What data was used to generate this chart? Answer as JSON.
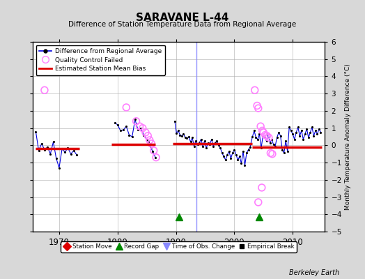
{
  "title": "SARAVANE L-44",
  "subtitle": "Difference of Station Temperature Data from Regional Average",
  "ylabel_right": "Monthly Temperature Anomaly Difference (°C)",
  "ylim": [
    -5,
    6
  ],
  "xlim": [
    1965.5,
    2015.5
  ],
  "xticks": [
    1970,
    1980,
    1990,
    2000,
    2010
  ],
  "background_color": "#d8d8d8",
  "plot_bg_color": "#ffffff",
  "grid_color": "#aaaaaa",
  "watermark": "Berkeley Earth",
  "bias_segments": [
    {
      "x_start": 1966.0,
      "x_end": 1973.5,
      "bias": -0.2
    },
    {
      "x_start": 1979.0,
      "x_end": 1986.5,
      "bias": 0.05
    },
    {
      "x_start": 1989.5,
      "x_end": 2003.0,
      "bias": 0.08
    },
    {
      "x_start": 2003.0,
      "x_end": 2015.0,
      "bias": -0.1
    }
  ],
  "time_of_obs_changes": [
    1993.5
  ],
  "record_gaps": [
    1990.5,
    2004.2
  ],
  "empirical_breaks": [],
  "station_moves": [],
  "qc_failed_points": [
    [
      1967.5,
      3.2
    ],
    [
      1981.5,
      2.2
    ],
    [
      1983.2,
      1.4
    ],
    [
      1983.8,
      1.1
    ],
    [
      1984.3,
      1.0
    ],
    [
      1984.8,
      0.75
    ],
    [
      1985.2,
      0.55
    ],
    [
      1985.5,
      0.3
    ],
    [
      1985.8,
      0.1
    ],
    [
      1986.2,
      -0.3
    ],
    [
      1986.6,
      -0.7
    ],
    [
      2003.5,
      3.2
    ],
    [
      2003.9,
      2.3
    ],
    [
      2004.1,
      2.15
    ],
    [
      2004.5,
      1.1
    ],
    [
      2004.8,
      0.85
    ],
    [
      2005.0,
      0.75
    ],
    [
      2005.3,
      0.6
    ],
    [
      2005.6,
      0.55
    ],
    [
      2005.9,
      0.45
    ],
    [
      2006.2,
      -0.45
    ],
    [
      2006.5,
      -0.5
    ],
    [
      2004.7,
      -2.45
    ],
    [
      2004.1,
      -3.3
    ]
  ],
  "data_points": [
    [
      1966.0,
      0.8
    ],
    [
      1966.5,
      -0.3
    ],
    [
      1967.0,
      0.1
    ],
    [
      1967.5,
      -0.25
    ],
    [
      1968.0,
      -0.1
    ],
    [
      1968.5,
      -0.5
    ],
    [
      1969.0,
      0.2
    ],
    [
      1969.5,
      -0.75
    ],
    [
      1970.0,
      -1.3
    ],
    [
      1970.5,
      -0.2
    ],
    [
      1971.0,
      -0.4
    ],
    [
      1971.5,
      -0.15
    ],
    [
      1972.0,
      -0.5
    ],
    [
      1972.5,
      -0.3
    ],
    [
      1973.0,
      -0.55
    ],
    [
      1979.5,
      1.3
    ],
    [
      1980.0,
      1.2
    ],
    [
      1980.5,
      0.85
    ],
    [
      1981.0,
      0.9
    ],
    [
      1981.5,
      1.1
    ],
    [
      1982.0,
      0.6
    ],
    [
      1982.5,
      0.5
    ],
    [
      1983.0,
      1.5
    ],
    [
      1983.5,
      0.9
    ],
    [
      1984.0,
      1.0
    ],
    [
      1984.5,
      0.6
    ],
    [
      1985.0,
      0.35
    ],
    [
      1985.3,
      0.2
    ],
    [
      1985.7,
      -0.1
    ],
    [
      1986.0,
      -0.35
    ],
    [
      1986.5,
      -0.7
    ],
    [
      1989.8,
      1.4
    ],
    [
      1990.1,
      0.7
    ],
    [
      1990.4,
      0.85
    ],
    [
      1990.7,
      0.6
    ],
    [
      1991.0,
      0.55
    ],
    [
      1991.3,
      0.65
    ],
    [
      1991.6,
      0.45
    ],
    [
      1991.9,
      0.4
    ],
    [
      1992.2,
      0.5
    ],
    [
      1992.5,
      0.2
    ],
    [
      1992.8,
      0.45
    ],
    [
      1993.1,
      -0.05
    ],
    [
      1993.4,
      0.25
    ],
    [
      1993.7,
      0.05
    ],
    [
      1994.0,
      0.15
    ],
    [
      1994.3,
      0.35
    ],
    [
      1994.6,
      -0.05
    ],
    [
      1994.9,
      0.25
    ],
    [
      1995.2,
      -0.15
    ],
    [
      1995.5,
      0.15
    ],
    [
      1995.8,
      0.05
    ],
    [
      1996.1,
      0.35
    ],
    [
      1996.4,
      -0.05
    ],
    [
      1996.7,
      0.15
    ],
    [
      1997.0,
      0.25
    ],
    [
      1997.3,
      0.0
    ],
    [
      1997.6,
      -0.15
    ],
    [
      1997.9,
      -0.45
    ],
    [
      1998.2,
      -0.65
    ],
    [
      1998.5,
      -0.85
    ],
    [
      1998.8,
      -0.55
    ],
    [
      1999.1,
      -0.35
    ],
    [
      1999.4,
      -0.75
    ],
    [
      1999.7,
      -0.45
    ],
    [
      2000.0,
      -0.25
    ],
    [
      2000.3,
      -0.55
    ],
    [
      2000.6,
      -0.85
    ],
    [
      2000.9,
      -0.65
    ],
    [
      2001.2,
      -1.05
    ],
    [
      2001.5,
      -0.35
    ],
    [
      2001.8,
      -1.15
    ],
    [
      2002.1,
      -0.45
    ],
    [
      2002.4,
      -0.25
    ],
    [
      2002.7,
      -0.1
    ],
    [
      2003.1,
      0.5
    ],
    [
      2003.4,
      0.85
    ],
    [
      2003.7,
      0.45
    ],
    [
      2004.0,
      0.35
    ],
    [
      2004.3,
      0.65
    ],
    [
      2004.6,
      -0.15
    ],
    [
      2004.9,
      0.55
    ],
    [
      2005.2,
      0.45
    ],
    [
      2005.5,
      0.25
    ],
    [
      2005.8,
      0.65
    ],
    [
      2006.1,
      0.15
    ],
    [
      2006.4,
      0.35
    ],
    [
      2006.7,
      0.05
    ],
    [
      2007.0,
      -0.05
    ],
    [
      2007.3,
      0.45
    ],
    [
      2007.6,
      0.75
    ],
    [
      2007.9,
      0.55
    ],
    [
      2008.2,
      -0.25
    ],
    [
      2008.5,
      -0.45
    ],
    [
      2008.8,
      0.25
    ],
    [
      2009.1,
      -0.35
    ],
    [
      2009.4,
      1.05
    ],
    [
      2009.7,
      0.85
    ],
    [
      2010.0,
      0.65
    ],
    [
      2010.3,
      0.35
    ],
    [
      2010.6,
      0.75
    ],
    [
      2010.9,
      1.05
    ],
    [
      2011.2,
      0.55
    ],
    [
      2011.5,
      0.85
    ],
    [
      2011.8,
      0.35
    ],
    [
      2012.1,
      0.65
    ],
    [
      2012.4,
      0.95
    ],
    [
      2012.7,
      0.45
    ],
    [
      2013.0,
      0.75
    ],
    [
      2013.3,
      1.05
    ],
    [
      2013.6,
      0.55
    ],
    [
      2013.9,
      0.85
    ],
    [
      2014.2,
      0.65
    ],
    [
      2014.5,
      0.95
    ],
    [
      2014.8,
      0.75
    ]
  ],
  "colors": {
    "line": "#0000dd",
    "dot": "#000000",
    "qc_circle": "#ff80ff",
    "bias_line": "#dd0000",
    "obs_change_line": "#8888ff",
    "record_gap_marker": "#008800",
    "station_move_marker": "#dd0000",
    "empirical_break_marker": "#000000"
  }
}
